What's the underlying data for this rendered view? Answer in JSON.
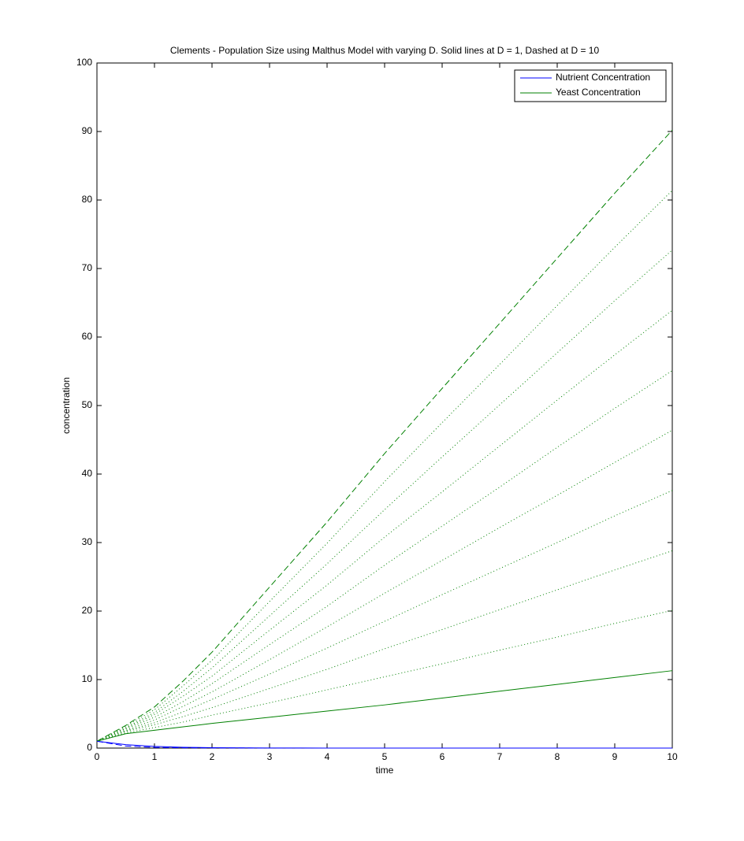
{
  "chart_data": {
    "type": "line",
    "title": "Clements - Population Size using Malthus Model with varying D. Solid lines at D = 1, Dashed at D = 10",
    "x_label": "time",
    "y_label": "concentration",
    "x": [
      0,
      0.5,
      1,
      1.5,
      2,
      3,
      4,
      5,
      6,
      7,
      8,
      9,
      10
    ],
    "series": [
      {
        "name": "Nutrient Concentration",
        "color": "#0000ff",
        "style": "solid",
        "values": [
          1,
          0.5,
          0.25,
          0.12,
          0.06,
          0.02,
          0,
          0,
          0,
          0,
          0,
          0,
          0
        ]
      },
      {
        "name": "Yeast Concentration",
        "color": "#008000",
        "style": "solid",
        "values": [
          1,
          2.1,
          2.6,
          3.1,
          3.6,
          4.5,
          5.4,
          6.3,
          7.3,
          8.3,
          9.3,
          10.3,
          11.3
        ]
      },
      {
        "color": "#008000",
        "style": "dotted",
        "values": [
          1,
          2.2,
          3,
          3.8,
          4.8,
          6.6,
          8.5,
          10.4,
          12.3,
          14.3,
          16.2,
          18.2,
          20.1
        ]
      },
      {
        "color": "#008000",
        "style": "dotted",
        "values": [
          1,
          2.4,
          3.4,
          4.6,
          5.9,
          8.7,
          11.5,
          14.5,
          17.3,
          20.2,
          23.1,
          26,
          28.8
        ]
      },
      {
        "color": "#008000",
        "style": "dotted",
        "values": [
          1,
          2.5,
          3.7,
          5.3,
          7.1,
          10.8,
          14.6,
          18.5,
          22.4,
          26.2,
          30,
          33.9,
          37.6
        ]
      },
      {
        "color": "#008000",
        "style": "dotted",
        "values": [
          1,
          2.6,
          4.1,
          6.1,
          8.2,
          12.9,
          17.7,
          22.6,
          27.4,
          32.2,
          36.9,
          41.7,
          46.4
        ]
      },
      {
        "color": "#008000",
        "style": "dotted",
        "values": [
          1,
          2.8,
          4.5,
          6.8,
          9.4,
          15.1,
          20.7,
          26.7,
          32.4,
          38.1,
          43.9,
          49.6,
          55.1
        ]
      },
      {
        "color": "#008000",
        "style": "dotted",
        "values": [
          1,
          2.9,
          4.9,
          7.6,
          10.5,
          17.2,
          23.8,
          30.8,
          37.4,
          44.1,
          50.8,
          57.4,
          63.9
        ]
      },
      {
        "color": "#008000",
        "style": "dotted",
        "values": [
          1,
          3,
          5.2,
          8.3,
          11.7,
          19.3,
          26.9,
          34.8,
          42.5,
          50.1,
          57.7,
          65.3,
          72.7
        ]
      },
      {
        "color": "#008000",
        "style": "dotted",
        "values": [
          1,
          3.2,
          5.6,
          9.1,
          12.8,
          21.4,
          29.9,
          38.9,
          47.5,
          56,
          64.6,
          73.1,
          81.4
        ]
      },
      {
        "color": "#008000",
        "style": "dashed",
        "values": [
          1,
          3.3,
          6,
          9.8,
          14,
          23.5,
          33,
          43,
          52.5,
          62,
          71.5,
          81,
          90.2
        ]
      },
      {
        "color": "#0000ff",
        "style": "dashed",
        "values": [
          1,
          0.3,
          0.1,
          0.05,
          0.02,
          0,
          0,
          0,
          0,
          0,
          0,
          0,
          0
        ]
      }
    ],
    "xlim": [
      0,
      10
    ],
    "xticks": [
      0,
      1,
      2,
      3,
      4,
      5,
      6,
      7,
      8,
      9,
      10
    ],
    "ylim": [
      0,
      100
    ],
    "yticks": [
      0,
      10,
      20,
      30,
      40,
      50,
      60,
      70,
      80,
      90,
      100
    ],
    "grid": false,
    "legend": "upper right"
  }
}
